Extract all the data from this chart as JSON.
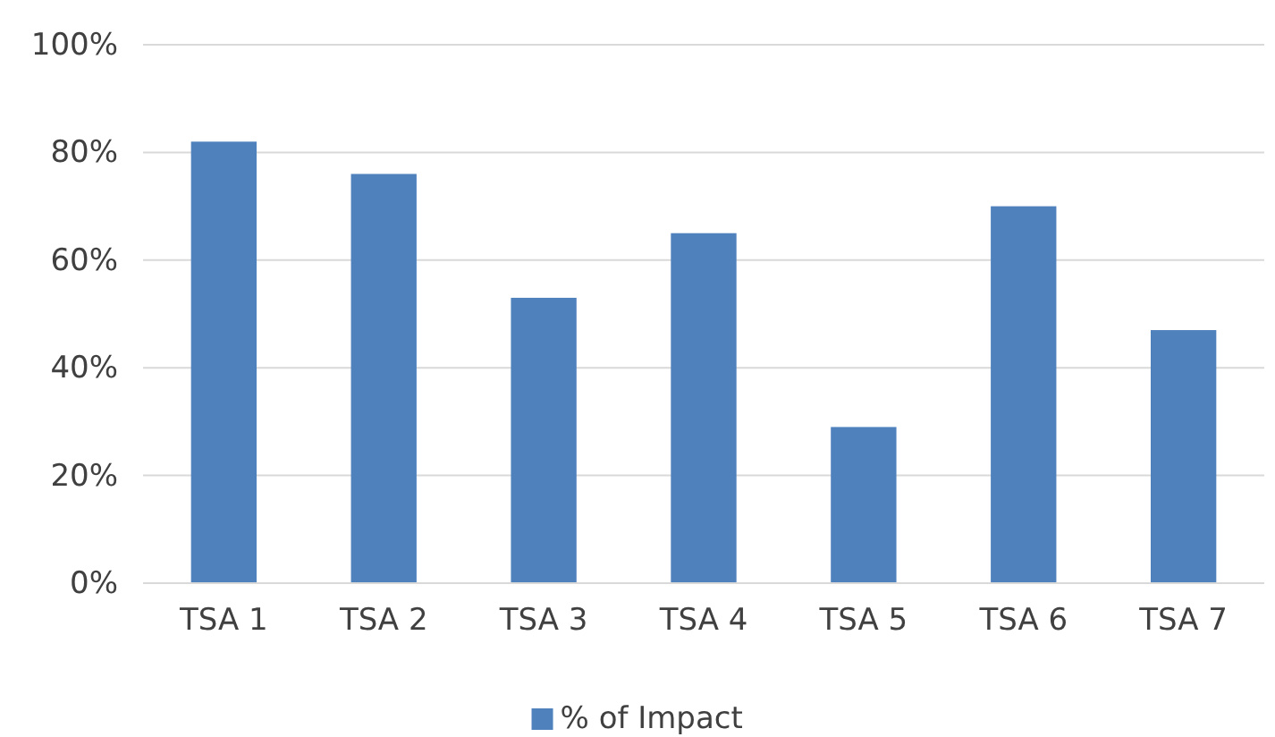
{
  "chart_data": {
    "type": "bar",
    "categories": [
      "TSA 1",
      "TSA 2",
      "TSA 3",
      "TSA 4",
      "TSA 5",
      "TSA 6",
      "TSA 7"
    ],
    "series": [
      {
        "name": "% of Impact",
        "color": "#4f81bd",
        "values": [
          82,
          76,
          53,
          65,
          29,
          70,
          47
        ]
      }
    ],
    "ylim": [
      0,
      100
    ],
    "yticks": [
      {
        "value": 0,
        "label": "0%"
      },
      {
        "value": 20,
        "label": "20%"
      },
      {
        "value": 40,
        "label": "40%"
      },
      {
        "value": 60,
        "label": "60%"
      },
      {
        "value": 80,
        "label": "80%"
      },
      {
        "value": 100,
        "label": "100%"
      }
    ],
    "grid": "y",
    "legend": "bottom"
  }
}
